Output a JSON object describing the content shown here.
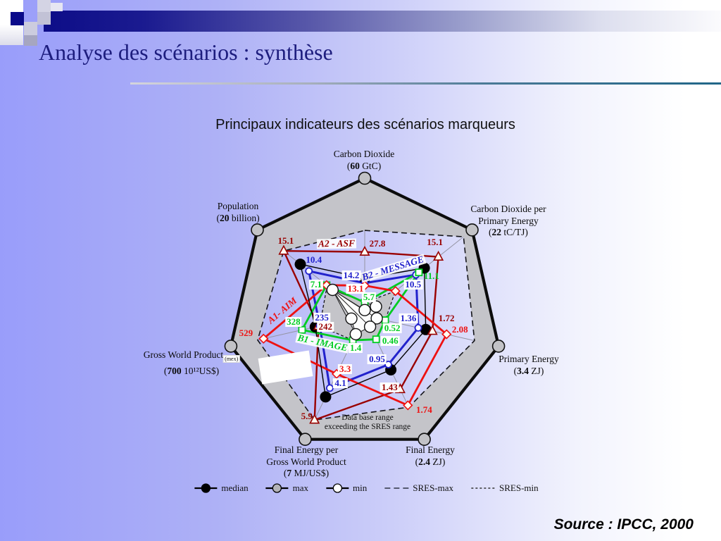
{
  "slide": {
    "title": "Analyse des scénarios : synthèse",
    "subtitle": "Principaux indicateurs des scénarios marqueurs",
    "source": "Source : IPCC, 2000"
  },
  "legend": {
    "items": [
      {
        "label": "median",
        "swatch": "circle",
        "fill": "#000000"
      },
      {
        "label": "max",
        "swatch": "circle",
        "fill": "#b4b4b8"
      },
      {
        "label": "min",
        "swatch": "circle",
        "fill": "#ffffff"
      },
      {
        "label": "SRES-max",
        "swatch": "dash-long"
      },
      {
        "label": "SRES-min",
        "swatch": "dash-short"
      }
    ]
  },
  "chart_data": {
    "type": "radar",
    "title": "Principaux indicateurs des scénarios marqueurs",
    "center": [
      518,
      448
    ],
    "radius": 195,
    "start_angle_deg": -90,
    "axes": [
      {
        "id": "co2",
        "label_lines": [
          "Carbon Dioxide"
        ],
        "scale_value": "60",
        "scale_unit": "GtC",
        "max": 60,
        "label_x": 517,
        "label_y": 211
      },
      {
        "id": "co2_per_pe",
        "label_lines": [
          "Carbon Dioxide per",
          "Primary Energy"
        ],
        "scale_value": "22",
        "scale_unit": "tC/TJ",
        "max": 22,
        "label_x": 722,
        "label_y": 289
      },
      {
        "id": "pe",
        "label_lines": [
          "Primary Energy"
        ],
        "scale_value": "3.4",
        "scale_unit": "ZJ",
        "max": 3.4,
        "label_x": 751,
        "label_y": 502
      },
      {
        "id": "fe",
        "label_lines": [
          "Final Energy"
        ],
        "scale_value": "2.4",
        "scale_unit": "ZJ",
        "max": 2.4,
        "label_x": 611,
        "label_y": 631
      },
      {
        "id": "fe_per_gwp",
        "label_lines": [
          "Final Energy per",
          "Gross World Product"
        ],
        "scale_value": "7",
        "scale_unit": "MJ/US$",
        "max": 7,
        "label_x": 435,
        "label_y": 631
      },
      {
        "id": "gwp",
        "label_lines": [
          "Gross World Product"
        ],
        "label_suffix": "(mex)",
        "scale_value": "700",
        "scale_unit": "10¹²US$",
        "max": 700,
        "label_x": 272,
        "label_y": 496
      },
      {
        "id": "pop",
        "label_lines": [
          "Population"
        ],
        "scale_value": "20",
        "scale_unit": "billion",
        "max": 20,
        "label_x": 338,
        "label_y": 285
      }
    ],
    "series": [
      {
        "name": "A2 - ASF",
        "color": "#990000",
        "marker": "triangle",
        "width": 2.4,
        "values": [
          27.8,
          15.1,
          1.72,
          1.43,
          5.9,
          242,
          15.1
        ],
        "labels": [
          "27.8",
          "15.1",
          "1.72",
          "1.43",
          "5.9",
          "242",
          "15.1"
        ],
        "label_offsets": [
          [
            18,
            -12
          ],
          [
            -5,
            -21
          ],
          [
            20,
            -18
          ],
          [
            -15,
            -3
          ],
          [
            -11,
            -5
          ],
          [
            10,
            1
          ],
          [
            3,
            -14
          ]
        ],
        "label_bg": [
          false,
          false,
          false,
          true,
          false,
          true,
          false
        ],
        "name_label": {
          "x": 478,
          "y": 346,
          "rotate": -1,
          "bg": true
        }
      },
      {
        "name": "B2 - MESSAGE",
        "color": "#2222cc",
        "marker": "circle",
        "width": 3,
        "values": [
          14.2,
          10.5,
          1.36,
          0.95,
          4.1,
          235,
          10.4
        ],
        "labels": [
          "14.2",
          "10.5",
          "1.36",
          "0.95",
          "4.1",
          "235",
          "10.4"
        ],
        "label_offsets": [
          [
            -19,
            -11
          ],
          [
            -4,
            14
          ],
          [
            -14,
            -13
          ],
          [
            -16,
            -8
          ],
          [
            15,
            -7
          ],
          [
            3,
            -12
          ],
          [
            7,
            -16
          ]
        ],
        "label_bg": [
          true,
          true,
          true,
          true,
          true,
          true,
          false
        ],
        "name_label": {
          "x": 558,
          "y": 381,
          "rotate": -17,
          "bg": true
        }
      },
      {
        "name": "B1 - IMAGE",
        "color": "#00cc22",
        "marker": "square",
        "width": 2.8,
        "values": [
          5.7,
          11.1,
          0.52,
          0.46,
          1.4,
          328,
          7.1
        ],
        "labels": [
          "5.7",
          "11.1",
          "0.52",
          "0.46",
          "1.4",
          "328",
          "7.1"
        ],
        "label_offsets": [
          [
            6,
            -7
          ],
          [
            18,
            5
          ],
          [
            10,
            11
          ],
          [
            20,
            2
          ],
          [
            4,
            11
          ],
          [
            -12,
            -11
          ],
          [
            -15,
            -1
          ]
        ],
        "label_bg": [
          true,
          false,
          true,
          true,
          true,
          true,
          true
        ],
        "name_label": {
          "x": 458,
          "y": 487,
          "rotate": 12,
          "bg": true
        }
      },
      {
        "name": "A1- AIM",
        "color": "#ee1111",
        "marker": "diamond",
        "width": 2.8,
        "values": [
          13.1,
          6.3,
          2.08,
          1.74,
          3.3,
          529,
          7.1
        ],
        "labels": [
          "13.1",
          null,
          "2.08",
          "1.74",
          "3.3",
          "529",
          null
        ],
        "label_offsets": [
          [
            -13,
            5
          ],
          null,
          [
            19,
            -7
          ],
          [
            23,
            7
          ],
          [
            12,
            -7
          ],
          [
            -25,
            -8
          ],
          null
        ],
        "label_bg": [
          true,
          false,
          false,
          false,
          true,
          false,
          false
        ],
        "name_label": {
          "x": 401,
          "y": 441,
          "rotate": -40,
          "bg": false
        }
      }
    ],
    "envelopes": {
      "db_max_r": [
        1,
        1,
        1,
        1,
        1,
        1,
        1
      ],
      "sres_max_r": [
        0.62,
        0.92,
        0.82,
        0.74,
        0.843,
        0.8,
        0.755
      ],
      "sres_min_r": [
        0.095,
        0.286,
        0.153,
        0.192,
        0.2,
        0.336,
        0.35
      ],
      "db_min_r": [
        0.04,
        0.105,
        0.09,
        0.09,
        0.15,
        0.1,
        0.3
      ],
      "median_r": [
        0.272,
        0.555,
        0.456,
        0.438,
        0.657,
        0.369,
        0.6
      ]
    },
    "annotation": {
      "lines": [
        "Data base range",
        "exceeding the SRES range"
      ],
      "x": 522,
      "y": 587
    },
    "colors": {
      "envelope_fill": "#c4c4c9",
      "outline": "#0c0c0c",
      "spoke": "#9494a2",
      "median_fill": "#000000",
      "max_fill": "#c2c2c6",
      "min_fill": "#fdfdfd"
    }
  }
}
